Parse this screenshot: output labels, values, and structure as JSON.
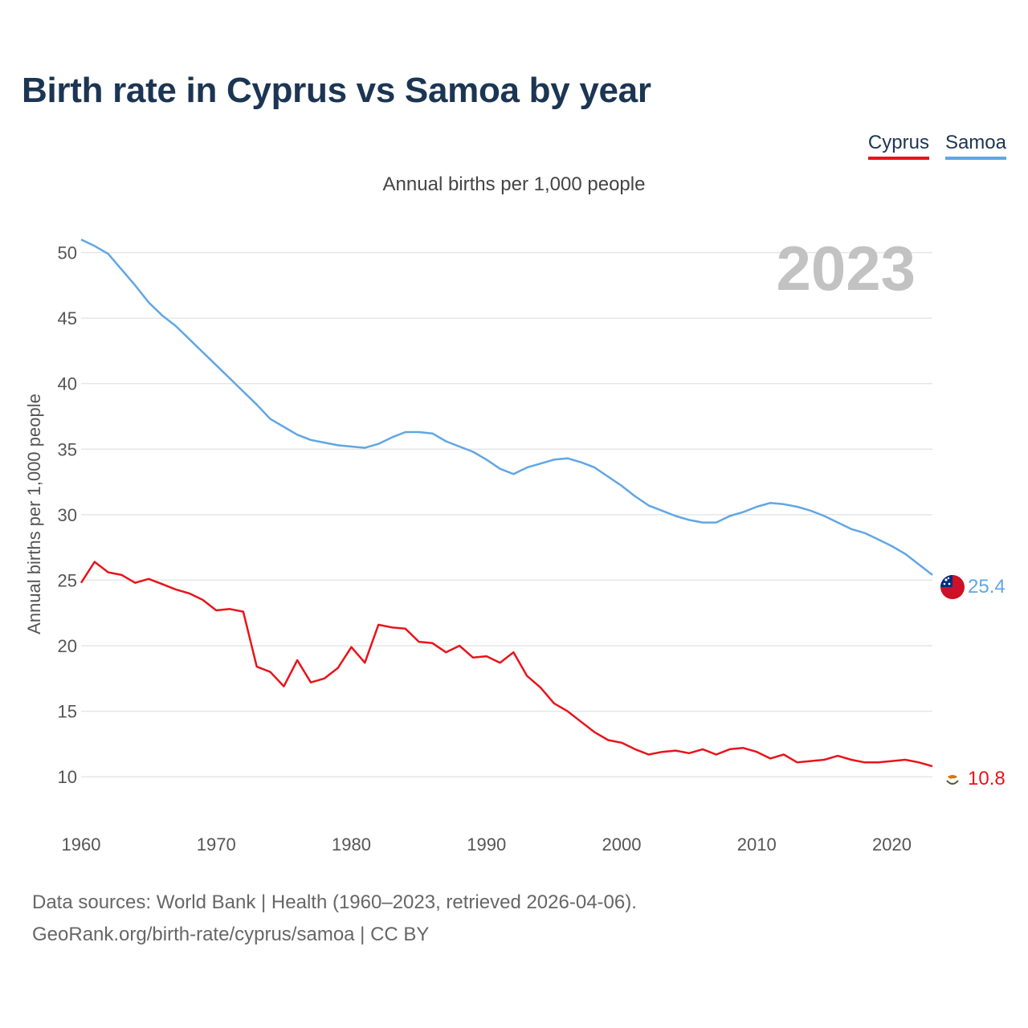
{
  "chart_data": {
    "type": "line",
    "title": "Birth rate in Cyprus vs Samoa by year",
    "subtitle": "Annual births per 1,000 people",
    "ylabel": "Annual births per 1,000 people",
    "xlabel": "",
    "year_label": "2023",
    "xlim": [
      1960,
      2023
    ],
    "ylim": [
      7.5,
      51.5
    ],
    "x_ticks": [
      "1960",
      "1970",
      "1980",
      "1990",
      "2000",
      "2010",
      "2020"
    ],
    "y_ticks": [
      "10",
      "15",
      "20",
      "25",
      "30",
      "35",
      "40",
      "45",
      "50"
    ],
    "legend": [
      "Cyprus",
      "Samoa"
    ],
    "x": [
      1960,
      1961,
      1962,
      1963,
      1964,
      1965,
      1966,
      1967,
      1968,
      1969,
      1970,
      1971,
      1972,
      1973,
      1974,
      1975,
      1976,
      1977,
      1978,
      1979,
      1980,
      1981,
      1982,
      1983,
      1984,
      1985,
      1986,
      1987,
      1988,
      1989,
      1990,
      1991,
      1992,
      1993,
      1994,
      1995,
      1996,
      1997,
      1998,
      1999,
      2000,
      2001,
      2002,
      2003,
      2004,
      2005,
      2006,
      2007,
      2008,
      2009,
      2010,
      2011,
      2012,
      2013,
      2014,
      2015,
      2016,
      2017,
      2018,
      2019,
      2020,
      2021,
      2022,
      2023
    ],
    "series": [
      {
        "name": "Cyprus",
        "color": "#e8141b",
        "end_label": "10.8",
        "values": [
          24.8,
          26.4,
          25.6,
          25.4,
          24.8,
          25.1,
          24.7,
          24.3,
          24.0,
          23.5,
          22.7,
          22.8,
          22.6,
          18.4,
          18.0,
          16.9,
          18.9,
          17.2,
          17.5,
          18.3,
          19.9,
          18.7,
          21.6,
          21.4,
          21.3,
          20.3,
          20.2,
          19.5,
          20.0,
          19.1,
          19.2,
          18.7,
          19.5,
          17.7,
          16.8,
          15.6,
          15.0,
          14.2,
          13.4,
          12.8,
          12.6,
          12.1,
          11.7,
          11.9,
          12.0,
          11.8,
          12.1,
          11.7,
          12.1,
          12.2,
          11.9,
          11.4,
          11.7,
          11.1,
          11.2,
          11.3,
          11.6,
          11.3,
          11.1,
          11.1,
          11.2,
          11.3,
          11.1,
          10.8
        ]
      },
      {
        "name": "Samoa",
        "color": "#61a6e5",
        "end_label": "25.4",
        "values": [
          51.0,
          50.5,
          49.9,
          48.7,
          47.5,
          46.2,
          45.2,
          44.4,
          43.4,
          42.4,
          41.4,
          40.4,
          39.4,
          38.4,
          37.3,
          36.7,
          36.1,
          35.7,
          35.5,
          35.3,
          35.2,
          35.1,
          35.4,
          35.9,
          36.3,
          36.3,
          36.2,
          35.6,
          35.2,
          34.8,
          34.2,
          33.5,
          33.1,
          33.6,
          33.9,
          34.2,
          34.3,
          34.0,
          33.6,
          32.9,
          32.2,
          31.4,
          30.7,
          30.3,
          29.9,
          29.6,
          29.4,
          29.4,
          29.9,
          30.2,
          30.6,
          30.9,
          30.8,
          30.6,
          30.3,
          29.9,
          29.4,
          28.9,
          28.6,
          28.1,
          27.6,
          27.0,
          26.2,
          25.4
        ]
      }
    ]
  },
  "footer": {
    "line1": "Data sources: World Bank | Health (1960–2023, retrieved 2026-04-06).",
    "line2": "GeoRank.org/birth-rate/cyprus/samoa | CC BY"
  }
}
